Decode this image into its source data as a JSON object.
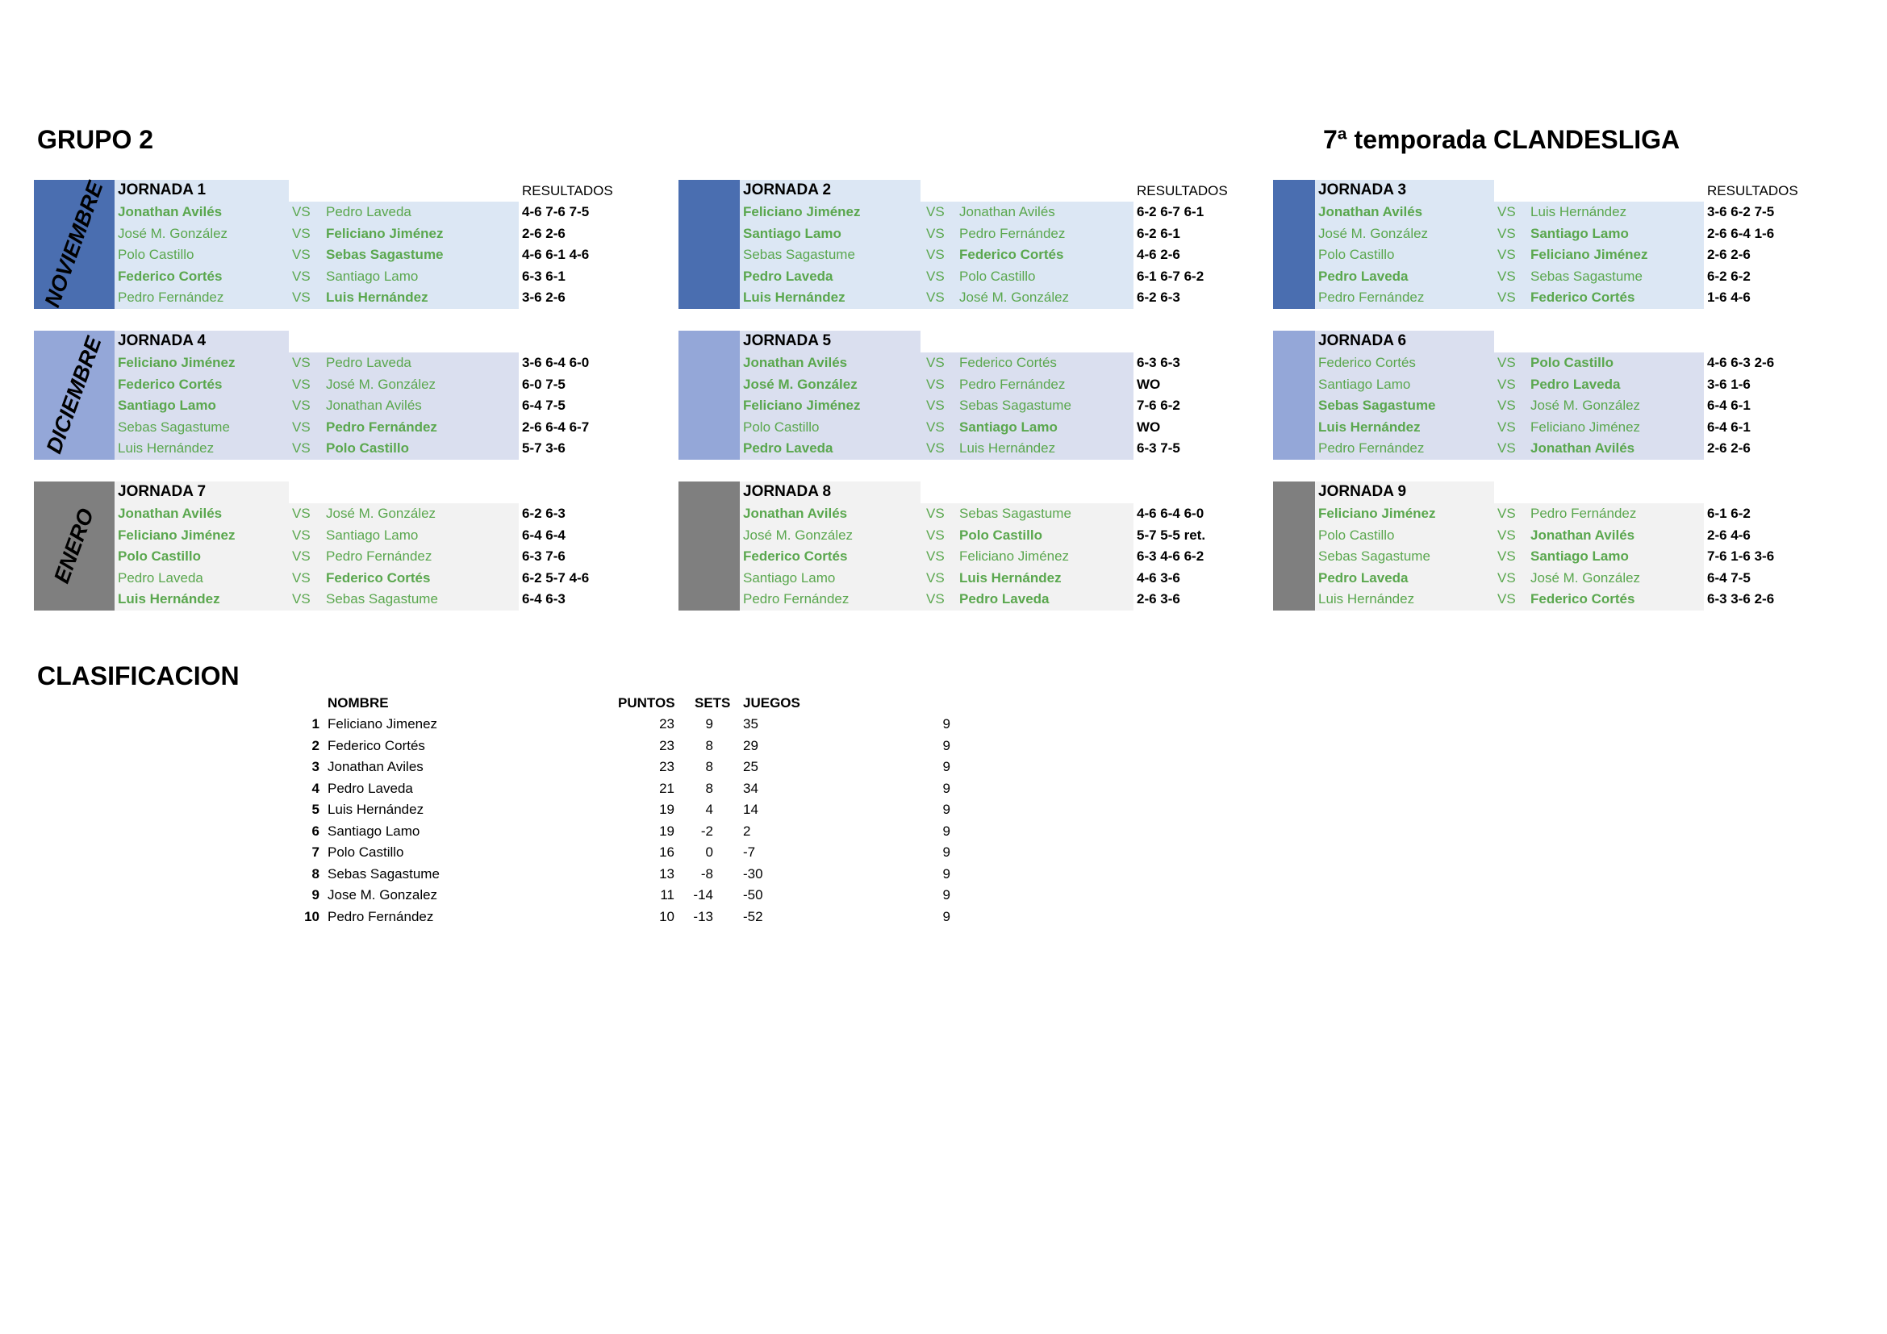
{
  "header": {
    "group": "GRUPO 2",
    "season": "7ª temporada CLANDESLIGA"
  },
  "labels": {
    "vs": "VS",
    "results": "RESULTADOS"
  },
  "months": [
    {
      "name": "NOVIEMBRE",
      "band_color": "#4a6eb0",
      "row_color": "#dce7f4"
    },
    {
      "name": "DICIEMBRE",
      "band_color": "#94a7d8",
      "row_color": "#dadfef"
    },
    {
      "name": "ENERO",
      "band_color": "#7f7f7f",
      "row_color": "#f2f2f2"
    }
  ],
  "jornadas": [
    {
      "title": "JORNADA 1",
      "show_results_label": true,
      "matches": [
        {
          "p1": "Jonathan Avilés",
          "p1_bold": true,
          "p2": "Pedro Laveda",
          "p2_bold": false,
          "result": "4-6 7-6 7-5"
        },
        {
          "p1": "José M. González",
          "p1_bold": false,
          "p2": "Feliciano Jiménez",
          "p2_bold": true,
          "result": "2-6 2-6"
        },
        {
          "p1": "Polo Castillo",
          "p1_bold": false,
          "p2": "Sebas Sagastume",
          "p2_bold": true,
          "result": "4-6 6-1 4-6"
        },
        {
          "p1": "Federico Cortés",
          "p1_bold": true,
          "p2": "Santiago Lamo",
          "p2_bold": false,
          "result": "6-3 6-1"
        },
        {
          "p1": "Pedro Fernández",
          "p1_bold": false,
          "p2": "Luis Hernández",
          "p2_bold": true,
          "result": "3-6 2-6"
        }
      ]
    },
    {
      "title": "JORNADA 2",
      "show_results_label": true,
      "matches": [
        {
          "p1": "Feliciano Jiménez",
          "p1_bold": true,
          "p2": "Jonathan Avilés",
          "p2_bold": false,
          "result": "6-2 6-7 6-1"
        },
        {
          "p1": "Santiago Lamo",
          "p1_bold": true,
          "p2": "Pedro Fernández",
          "p2_bold": false,
          "result": "6-2 6-1"
        },
        {
          "p1": "Sebas Sagastume",
          "p1_bold": false,
          "p2": "Federico Cortés",
          "p2_bold": true,
          "result": "4-6 2-6"
        },
        {
          "p1": "Pedro Laveda",
          "p1_bold": true,
          "p2": "Polo Castillo",
          "p2_bold": false,
          "result": "6-1 6-7 6-2"
        },
        {
          "p1": "Luis Hernández",
          "p1_bold": true,
          "p2": "José M. González",
          "p2_bold": false,
          "result": "6-2 6-3"
        }
      ]
    },
    {
      "title": "JORNADA 3",
      "show_results_label": true,
      "matches": [
        {
          "p1": "Jonathan Avilés",
          "p1_bold": true,
          "p2": "Luis Hernández",
          "p2_bold": false,
          "result": "3-6 6-2 7-5"
        },
        {
          "p1": "José M. González",
          "p1_bold": false,
          "p2": "Santiago Lamo",
          "p2_bold": true,
          "result": "2-6 6-4 1-6"
        },
        {
          "p1": "Polo Castillo",
          "p1_bold": false,
          "p2": "Feliciano Jiménez",
          "p2_bold": true,
          "result": "2-6 2-6"
        },
        {
          "p1": "Pedro Laveda",
          "p1_bold": true,
          "p2": "Sebas Sagastume",
          "p2_bold": false,
          "result": "6-2 6-2"
        },
        {
          "p1": "Pedro Fernández",
          "p1_bold": false,
          "p2": "Federico Cortés",
          "p2_bold": true,
          "result": "1-6 4-6"
        }
      ]
    },
    {
      "title": "JORNADA 4",
      "show_results_label": false,
      "matches": [
        {
          "p1": "Feliciano Jiménez",
          "p1_bold": true,
          "p2": "Pedro Laveda",
          "p2_bold": false,
          "result": "3-6 6-4 6-0"
        },
        {
          "p1": "Federico Cortés",
          "p1_bold": true,
          "p2": "José M. González",
          "p2_bold": false,
          "result": "6-0 7-5"
        },
        {
          "p1": "Santiago Lamo",
          "p1_bold": true,
          "p2": "Jonathan Avilés",
          "p2_bold": false,
          "result": "6-4 7-5"
        },
        {
          "p1": "Sebas Sagastume",
          "p1_bold": false,
          "p2": "Pedro Fernández",
          "p2_bold": true,
          "result": "2-6 6-4 6-7"
        },
        {
          "p1": "Luis Hernández",
          "p1_bold": false,
          "p2": "Polo Castillo",
          "p2_bold": true,
          "result": "5-7 3-6"
        }
      ]
    },
    {
      "title": "JORNADA 5",
      "show_results_label": false,
      "matches": [
        {
          "p1": "Jonathan Avilés",
          "p1_bold": true,
          "p2": "Federico Cortés",
          "p2_bold": false,
          "result": "6-3 6-3"
        },
        {
          "p1": "José M. González",
          "p1_bold": true,
          "p2": "Pedro Fernández",
          "p2_bold": false,
          "result": "WO"
        },
        {
          "p1": "Feliciano Jiménez",
          "p1_bold": true,
          "p2": "Sebas Sagastume",
          "p2_bold": false,
          "result": "7-6 6-2"
        },
        {
          "p1": "Polo Castillo",
          "p1_bold": false,
          "p2": "Santiago Lamo",
          "p2_bold": true,
          "result": "WO"
        },
        {
          "p1": "Pedro Laveda",
          "p1_bold": true,
          "p2": "Luis Hernández",
          "p2_bold": false,
          "result": "6-3 7-5"
        }
      ]
    },
    {
      "title": "JORNADA 6",
      "show_results_label": false,
      "matches": [
        {
          "p1": "Federico Cortés",
          "p1_bold": false,
          "p2": "Polo Castillo",
          "p2_bold": true,
          "result": "4-6 6-3 2-6"
        },
        {
          "p1": "Santiago Lamo",
          "p1_bold": false,
          "p2": "Pedro Laveda",
          "p2_bold": true,
          "result": "3-6 1-6"
        },
        {
          "p1": "Sebas Sagastume",
          "p1_bold": true,
          "p2": "José M. González",
          "p2_bold": false,
          "result": "6-4 6-1"
        },
        {
          "p1": "Luis Hernández",
          "p1_bold": true,
          "p2": "Feliciano Jiménez",
          "p2_bold": false,
          "result": "6-4 6-1"
        },
        {
          "p1": "Pedro Fernández",
          "p1_bold": false,
          "p2": "Jonathan Avilés",
          "p2_bold": true,
          "result": "2-6 2-6"
        }
      ]
    },
    {
      "title": "JORNADA 7",
      "show_results_label": false,
      "matches": [
        {
          "p1": "Jonathan Avilés",
          "p1_bold": true,
          "p2": "José M. González",
          "p2_bold": false,
          "result": "6-2 6-3"
        },
        {
          "p1": "Feliciano Jiménez",
          "p1_bold": true,
          "p2": "Santiago Lamo",
          "p2_bold": false,
          "result": "6-4 6-4"
        },
        {
          "p1": "Polo Castillo",
          "p1_bold": true,
          "p2": "Pedro Fernández",
          "p2_bold": false,
          "result": "6-3 7-6"
        },
        {
          "p1": "Pedro Laveda",
          "p1_bold": false,
          "p2": "Federico Cortés",
          "p2_bold": true,
          "result": "6-2 5-7 4-6"
        },
        {
          "p1": "Luis Hernández",
          "p1_bold": true,
          "p2": "Sebas Sagastume",
          "p2_bold": false,
          "result": "6-4 6-3"
        }
      ]
    },
    {
      "title": "JORNADA 8",
      "show_results_label": false,
      "matches": [
        {
          "p1": "Jonathan Avilés",
          "p1_bold": true,
          "p2": "Sebas Sagastume",
          "p2_bold": false,
          "result": "4-6 6-4 6-0"
        },
        {
          "p1": "José M. González",
          "p1_bold": false,
          "p2": "Polo Castillo",
          "p2_bold": true,
          "result": "5-7 5-5 ret."
        },
        {
          "p1": "Federico Cortés",
          "p1_bold": true,
          "p2": "Feliciano Jiménez",
          "p2_bold": false,
          "result": "6-3 4-6 6-2"
        },
        {
          "p1": "Santiago Lamo",
          "p1_bold": false,
          "p2": "Luis Hernández",
          "p2_bold": true,
          "result": "4-6 3-6"
        },
        {
          "p1": "Pedro Fernández",
          "p1_bold": false,
          "p2": "Pedro Laveda",
          "p2_bold": true,
          "result": "2-6 3-6"
        }
      ]
    },
    {
      "title": "JORNADA 9",
      "show_results_label": false,
      "matches": [
        {
          "p1": "Feliciano Jiménez",
          "p1_bold": true,
          "p2": "Pedro Fernández",
          "p2_bold": false,
          "result": "6-1 6-2"
        },
        {
          "p1": "Polo Castillo",
          "p1_bold": false,
          "p2": "Jonathan Avilés",
          "p2_bold": true,
          "result": "2-6 4-6"
        },
        {
          "p1": "Sebas Sagastume",
          "p1_bold": false,
          "p2": "Santiago Lamo",
          "p2_bold": true,
          "result": "7-6 1-6 3-6"
        },
        {
          "p1": "Pedro Laveda",
          "p1_bold": true,
          "p2": "José M. González",
          "p2_bold": false,
          "result": "6-4 7-5"
        },
        {
          "p1": "Luis Hernández",
          "p1_bold": false,
          "p2": "Federico Cortés",
          "p2_bold": true,
          "result": "6-3 3-6 2-6"
        }
      ]
    }
  ],
  "standings": {
    "title": "CLASIFICACION",
    "headers": {
      "name": "NOMBRE",
      "points": "PUNTOS",
      "sets": "SETS",
      "games": "JUEGOS"
    },
    "rows": [
      {
        "pos": "1",
        "name": "Feliciano Jimenez",
        "points": "23",
        "sets": "9",
        "games": "35",
        "played": "9"
      },
      {
        "pos": "2",
        "name": "Federico Cortés",
        "points": "23",
        "sets": "8",
        "games": "29",
        "played": "9"
      },
      {
        "pos": "3",
        "name": "Jonathan Aviles",
        "points": "23",
        "sets": "8",
        "games": "25",
        "played": "9"
      },
      {
        "pos": "4",
        "name": "Pedro Laveda",
        "points": "21",
        "sets": "8",
        "games": "34",
        "played": "9"
      },
      {
        "pos": "5",
        "name": "Luis Hernández",
        "points": "19",
        "sets": "4",
        "games": "14",
        "played": "9"
      },
      {
        "pos": "6",
        "name": "Santiago Lamo",
        "points": "19",
        "sets": "-2",
        "games": "2",
        "played": "9"
      },
      {
        "pos": "7",
        "name": "Polo Castillo",
        "points": "16",
        "sets": "0",
        "games": "-7",
        "played": "9"
      },
      {
        "pos": "8",
        "name": "Sebas Sagastume",
        "points": "13",
        "sets": "-8",
        "games": "-30",
        "played": "9"
      },
      {
        "pos": "9",
        "name": "Jose M. Gonzalez",
        "points": "11",
        "sets": "-14",
        "games": "-50",
        "played": "9"
      },
      {
        "pos": "10",
        "name": "Pedro Fernández",
        "points": "10",
        "sets": "-13",
        "games": "-52",
        "played": "9"
      }
    ]
  }
}
